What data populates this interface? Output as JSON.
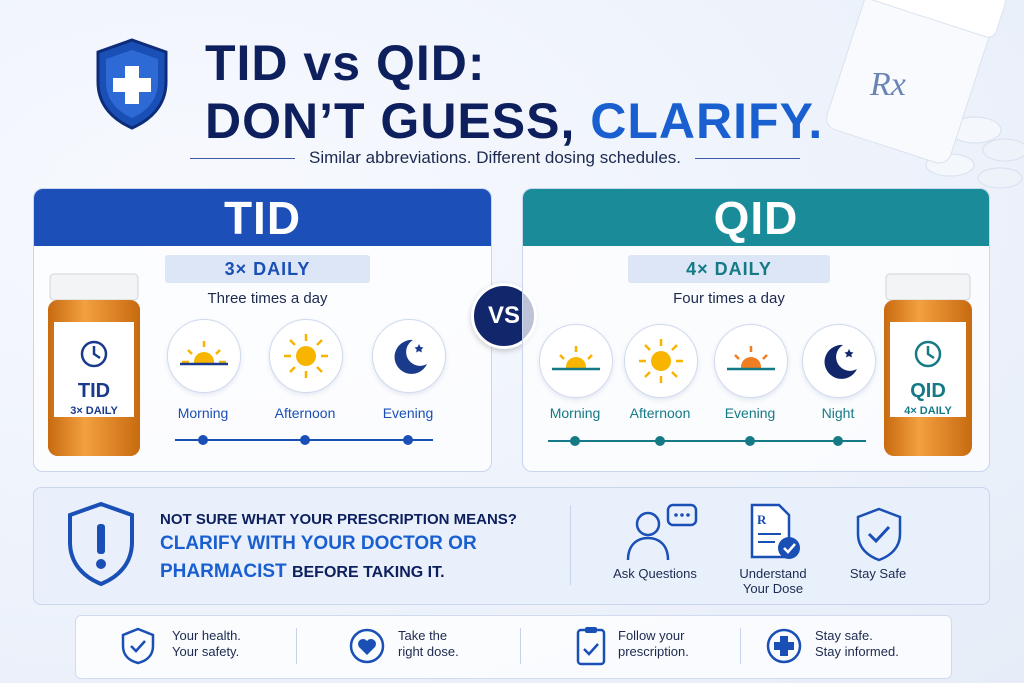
{
  "header": {
    "title_line1": "TID vs QID:",
    "title_line2": "DON’T GUESS,",
    "title_highlight": "CLARIFY.",
    "subtitle": "Similar abbreviations. Different dosing schedules.",
    "rx": "Rx"
  },
  "tid": {
    "label": "TID",
    "frequency": "3× DAILY",
    "description": "Three times a day",
    "bottle_label": "TID",
    "bottle_sub": "3× DAILY",
    "times": [
      "Morning",
      "Afternoon",
      "Evening"
    ]
  },
  "vs": "VS",
  "qid": {
    "label": "QID",
    "frequency": "4× DAILY",
    "description": "Four times a day",
    "bottle_label": "QID",
    "bottle_sub": "4× DAILY",
    "times": [
      "Morning",
      "Afternoon",
      "Evening",
      "Night"
    ]
  },
  "notice": {
    "line1": "NOT SURE WHAT YOUR PRESCRIPTION MEANS?",
    "highlight_1": "CLARIFY WITH YOUR DOCTOR OR",
    "highlight_2": "PHARMACIST",
    "rest": "BEFORE TAKING IT.",
    "actions": [
      "Ask Questions",
      "Understand Your Dose",
      "Stay Safe"
    ]
  },
  "footer": [
    {
      "line1": "Your health.",
      "line2": "Your safety."
    },
    {
      "line1": "Take the",
      "line2": "right dose."
    },
    {
      "line1": "Follow your",
      "line2": "prescription."
    },
    {
      "line1": "Stay safe.",
      "line2": "Stay informed."
    }
  ]
}
